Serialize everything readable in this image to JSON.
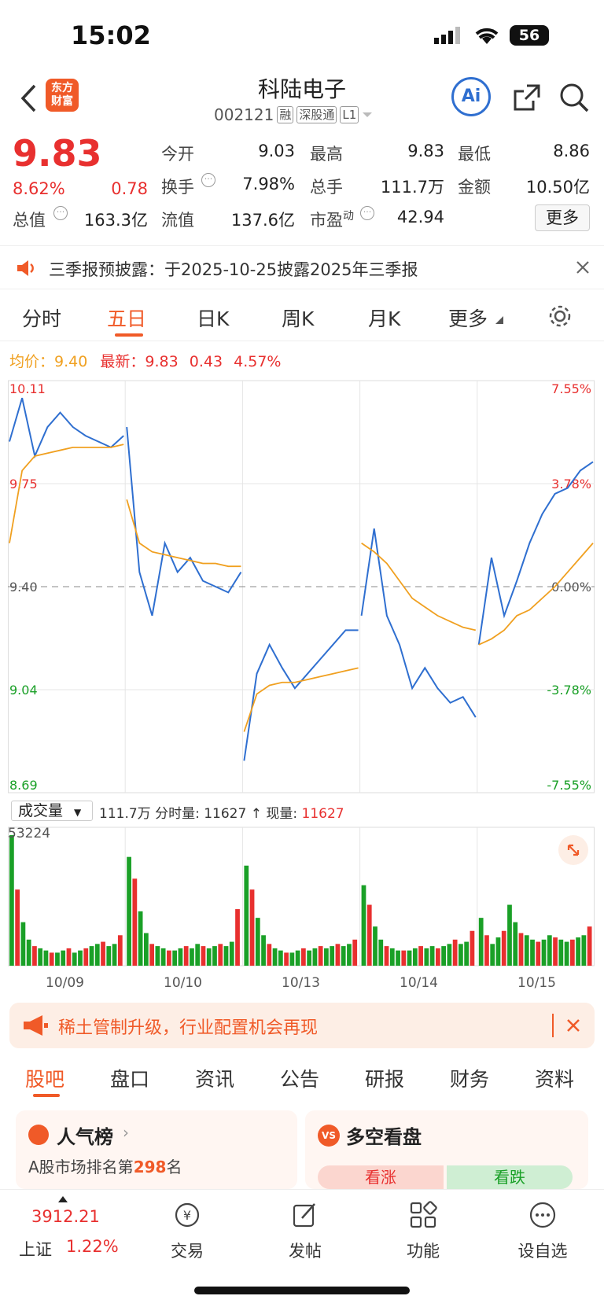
{
  "status": {
    "time": "15:02",
    "battery": "56"
  },
  "header": {
    "title": "科陆电子",
    "code": "002121",
    "tags": [
      "融",
      "深股通",
      "L1"
    ],
    "logo_text": "东方\n财富",
    "ai_label": "Ai"
  },
  "quote": {
    "price": "9.83",
    "change_pct": "8.62%",
    "change": "0.78",
    "fields": [
      {
        "label": "今开",
        "value": "9.03",
        "color": "green"
      },
      {
        "label": "最高",
        "value": "9.83",
        "color": "red"
      },
      {
        "label": "最低",
        "value": "8.86",
        "color": "green"
      },
      {
        "label": "换手",
        "value": "7.98%",
        "color": "black"
      },
      {
        "label": "总手",
        "value": "111.7万",
        "color": "black"
      },
      {
        "label": "金额",
        "value": "10.50亿",
        "color": "black"
      },
      {
        "label": "总值",
        "value": "163.3亿",
        "color": "black"
      },
      {
        "label": "流值",
        "value": "137.6亿",
        "color": "black"
      },
      {
        "label": "市盈",
        "value": "42.94",
        "color": "black",
        "sup": "动"
      }
    ],
    "more": "更多"
  },
  "notice": {
    "text": "三季报预披露：于2025-10-25披露2025年三季报"
  },
  "tabs": [
    "分时",
    "五日",
    "日K",
    "周K",
    "月K",
    "更多"
  ],
  "active_tab": "五日",
  "legend": {
    "avg_label": "均价：",
    "avg": "9.40",
    "latest_label": "最新：",
    "latest": "9.83",
    "chg": "0.43",
    "pct": "4.57%"
  },
  "chart_data": {
    "type": "line",
    "title": "",
    "x": [
      "10/09",
      "10/10",
      "10/13",
      "10/14",
      "10/15"
    ],
    "y_ticks": [
      "10.11",
      "9.75",
      "9.40",
      "9.04",
      "8.69"
    ],
    "pct_ticks": [
      "7.55%",
      "3.78%",
      "0.00%",
      "-3.78%",
      "-7.55%"
    ],
    "ylim": [
      8.69,
      10.11
    ],
    "series": [
      {
        "values": [
          [
            9.9,
            10.05,
            9.85,
            9.95,
            10.0,
            9.95,
            9.92,
            9.9,
            9.88,
            9.92
          ],
          [
            9.95,
            9.45,
            9.3,
            9.55,
            9.45,
            9.5,
            9.42,
            9.4,
            9.38,
            9.45
          ],
          [
            8.8,
            9.1,
            9.2,
            9.12,
            9.05,
            9.1,
            9.15,
            9.2,
            9.25,
            9.25
          ],
          [
            9.3,
            9.6,
            9.3,
            9.2,
            9.05,
            9.12,
            9.05,
            9.0,
            9.02,
            8.95
          ],
          [
            9.2,
            9.5,
            9.3,
            9.42,
            9.55,
            9.65,
            9.72,
            9.74,
            9.8,
            9.83
          ]
        ]
      },
      {
        "values": [
          [
            9.55,
            9.8,
            9.85,
            9.86,
            9.87,
            9.88,
            9.88,
            9.88,
            9.88,
            9.89
          ],
          [
            9.7,
            9.55,
            9.52,
            9.51,
            9.5,
            9.49,
            9.48,
            9.48,
            9.47,
            9.47
          ],
          [
            8.9,
            9.03,
            9.06,
            9.07,
            9.07,
            9.08,
            9.09,
            9.1,
            9.11,
            9.12
          ],
          [
            9.55,
            9.52,
            9.48,
            9.42,
            9.36,
            9.33,
            9.3,
            9.28,
            9.26,
            9.25
          ],
          [
            9.2,
            9.22,
            9.25,
            9.3,
            9.32,
            9.36,
            9.4,
            9.45,
            9.5,
            9.55
          ]
        ]
      }
    ],
    "vol_label": "成交量",
    "vol_total": "111.7万",
    "vol_minute_label": "分时量:",
    "vol_minute": "11627",
    "vol_now_label": "现量:",
    "vol_now": "11627",
    "vol_max": "53224",
    "volumes": [
      [
        60,
        35,
        20,
        12,
        9,
        8,
        7,
        6,
        6,
        7,
        8,
        6,
        7,
        8,
        9,
        10,
        11,
        9,
        10,
        14
      ],
      [
        50,
        40,
        25,
        15,
        10,
        9,
        8,
        7,
        7,
        8,
        9,
        8,
        10,
        9,
        8,
        9,
        10,
        9,
        11,
        26
      ],
      [
        46,
        35,
        22,
        14,
        10,
        8,
        7,
        6,
        6,
        7,
        8,
        7,
        8,
        9,
        8,
        9,
        10,
        9,
        10,
        12
      ],
      [
        37,
        28,
        18,
        12,
        9,
        8,
        7,
        7,
        7,
        8,
        9,
        8,
        9,
        8,
        9,
        10,
        12,
        10,
        11,
        16
      ],
      [
        22,
        14,
        10,
        13,
        16,
        28,
        20,
        15,
        14,
        12,
        11,
        12,
        14,
        13,
        12,
        11,
        12,
        13,
        14,
        18
      ]
    ]
  },
  "promo": {
    "text": "稀土管制升级，行业配置机会再现"
  },
  "bottom_tabs": [
    "股吧",
    "盘口",
    "资讯",
    "公告",
    "研报",
    "财务",
    "资料"
  ],
  "cards": {
    "left_title": "人气榜",
    "left_sub_prefix": "A股市场排名第",
    "left_rank": "298",
    "left_sub_suffix": "名",
    "right_title": "多空看盘",
    "bull": "看涨",
    "bear": "看跌"
  },
  "bottom_nav": {
    "index_value": "3912.21",
    "index_name": "上证",
    "index_pct": "1.22%",
    "items": [
      "交易",
      "发帖",
      "功能",
      "设自选"
    ]
  },
  "colors": {
    "red": "#e8302f",
    "green": "#1aa027",
    "orange": "#f0a020",
    "blue": "#2f6fd0",
    "brand": "#f05a28"
  }
}
